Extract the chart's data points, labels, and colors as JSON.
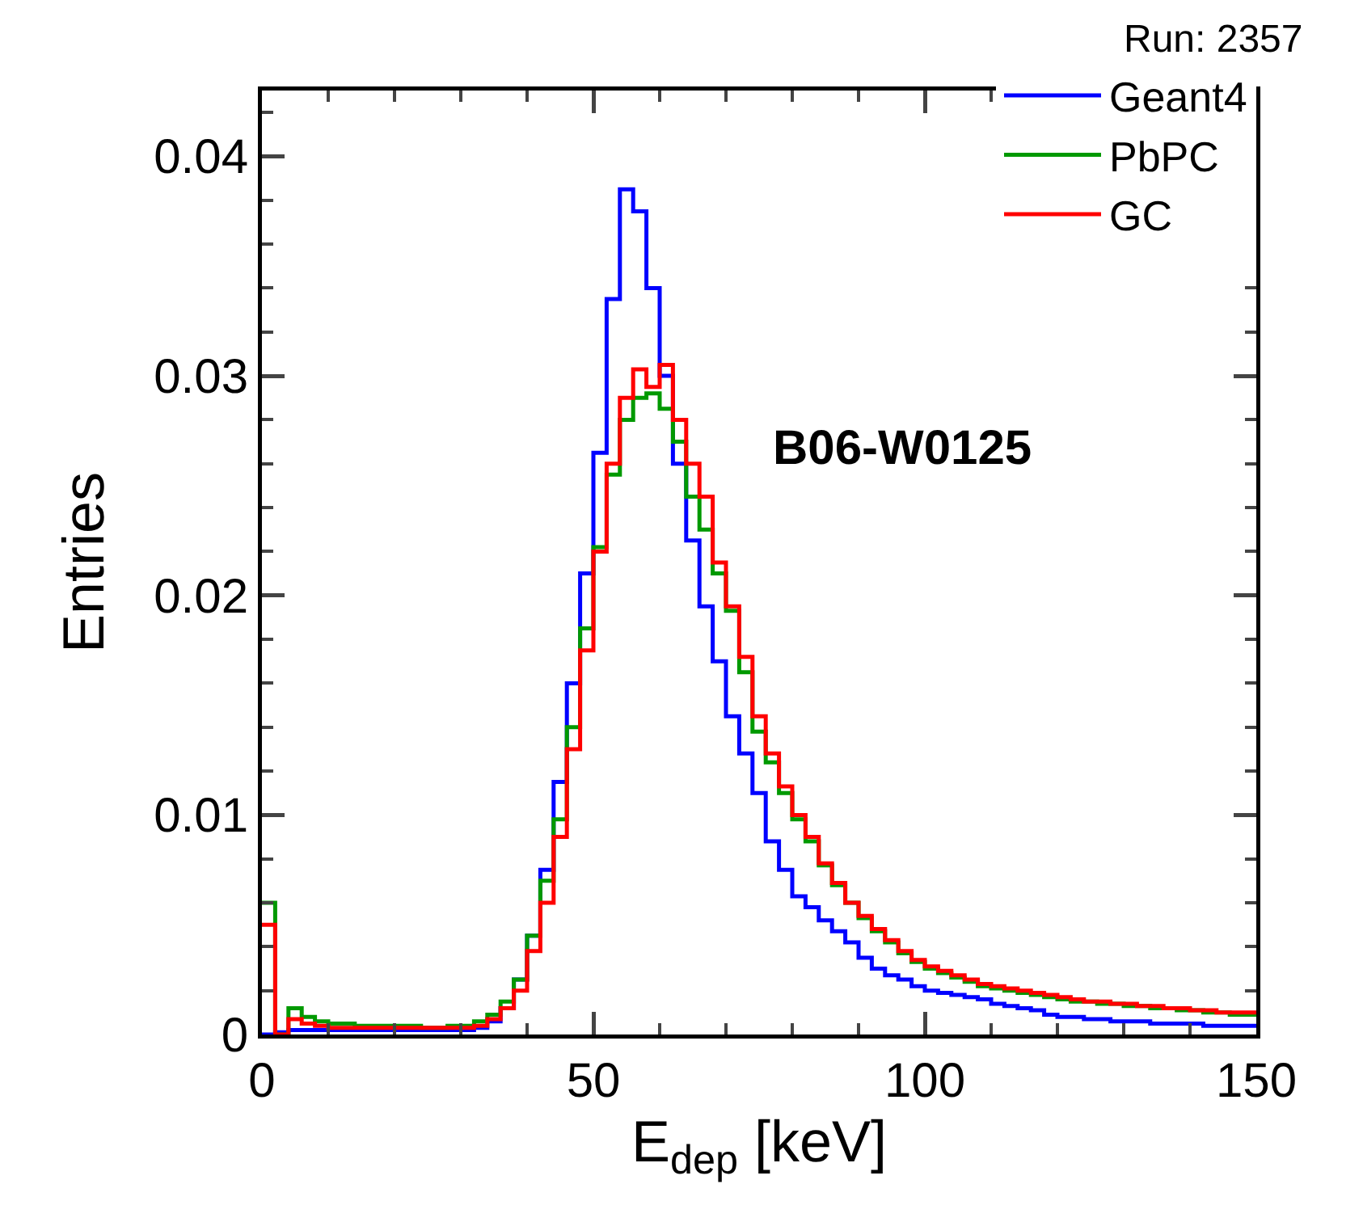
{
  "chart_data": {
    "type": "histogram",
    "title": "Run: 2357",
    "xlabel": "E$_{dep}$ [keV]",
    "ylabel": "Entries",
    "annotations": [
      "B06-W0125"
    ],
    "bins": [
      0,
      2,
      4,
      6,
      8,
      10,
      12,
      14,
      16,
      18,
      20,
      22,
      24,
      26,
      28,
      30,
      32,
      34,
      36,
      38,
      40,
      42,
      44,
      46,
      48,
      50,
      52,
      54,
      56,
      58,
      60,
      62,
      64,
      66,
      68,
      70,
      72,
      74,
      76,
      78,
      80,
      82,
      84,
      86,
      88,
      90,
      92,
      94,
      96,
      98,
      100,
      102,
      104,
      106,
      108,
      110,
      112,
      114,
      116,
      118,
      120,
      122,
      124,
      126,
      128,
      130,
      132,
      134,
      136,
      138,
      140,
      142,
      144,
      146,
      148,
      150
    ],
    "series": [
      {
        "name": "Geant4",
        "color": "#0000ff",
        "values": [
          0,
          0.0001,
          0.0002,
          0.0002,
          0.0002,
          0.0002,
          0.0002,
          0.0002,
          0.0002,
          0.0002,
          0.0002,
          0.0002,
          0.0002,
          0.0002,
          0.0002,
          0.0002,
          0.0003,
          0.0006,
          0.0012,
          0.0025,
          0.0045,
          0.0075,
          0.0115,
          0.016,
          0.021,
          0.0265,
          0.0335,
          0.0385,
          0.0375,
          0.034,
          0.03,
          0.026,
          0.0225,
          0.0195,
          0.017,
          0.0145,
          0.0128,
          0.011,
          0.0088,
          0.0075,
          0.0063,
          0.0058,
          0.0052,
          0.0047,
          0.0042,
          0.0035,
          0.003,
          0.0027,
          0.0025,
          0.0022,
          0.002,
          0.0019,
          0.0018,
          0.0017,
          0.0016,
          0.0014,
          0.0013,
          0.0012,
          0.0011,
          0.0009,
          0.0008,
          0.0008,
          0.0007,
          0.0007,
          0.0006,
          0.0006,
          0.0006,
          0.0005,
          0.0005,
          0.0005,
          0.0005,
          0.0004,
          0.0004,
          0.0004,
          0.0004
        ]
      },
      {
        "name": "PbPC",
        "color": "#009900",
        "values": [
          0.006,
          0,
          0.0012,
          0.0008,
          0.0006,
          0.0005,
          0.0005,
          0.0004,
          0.0004,
          0.0004,
          0.0004,
          0.0004,
          0.0003,
          0.0003,
          0.0004,
          0.0004,
          0.0006,
          0.0009,
          0.0015,
          0.0025,
          0.0045,
          0.007,
          0.0098,
          0.014,
          0.0185,
          0.0222,
          0.0255,
          0.028,
          0.029,
          0.0292,
          0.0285,
          0.027,
          0.0245,
          0.023,
          0.021,
          0.0193,
          0.0165,
          0.0138,
          0.0124,
          0.011,
          0.0098,
          0.0088,
          0.0077,
          0.0068,
          0.006,
          0.0053,
          0.0047,
          0.0042,
          0.0037,
          0.0033,
          0.003,
          0.0028,
          0.0026,
          0.0024,
          0.0022,
          0.0021,
          0.002,
          0.0019,
          0.0018,
          0.0017,
          0.0016,
          0.0015,
          0.0015,
          0.0014,
          0.0014,
          0.0013,
          0.0013,
          0.0012,
          0.0012,
          0.0011,
          0.0011,
          0.001,
          0.001,
          0.0009,
          0.0009
        ]
      },
      {
        "name": "GC",
        "color": "#ff0000",
        "values": [
          0.005,
          0,
          0.0007,
          0.0005,
          0.0004,
          0.0003,
          0.0003,
          0.0003,
          0.0003,
          0.0003,
          0.0003,
          0.0003,
          0.0003,
          0.0003,
          0.0003,
          0.0003,
          0.0004,
          0.0007,
          0.0012,
          0.002,
          0.0038,
          0.006,
          0.009,
          0.013,
          0.0175,
          0.022,
          0.026,
          0.029,
          0.0303,
          0.0295,
          0.0305,
          0.028,
          0.026,
          0.0245,
          0.0215,
          0.0195,
          0.0172,
          0.0145,
          0.0128,
          0.0113,
          0.01,
          0.009,
          0.0078,
          0.0069,
          0.006,
          0.0054,
          0.0048,
          0.0043,
          0.0038,
          0.0034,
          0.0031,
          0.0029,
          0.0027,
          0.0025,
          0.0023,
          0.0022,
          0.0021,
          0.002,
          0.0019,
          0.0018,
          0.0017,
          0.0016,
          0.0015,
          0.0015,
          0.0014,
          0.0014,
          0.0013,
          0.0013,
          0.0012,
          0.0012,
          0.0011,
          0.0011,
          0.001,
          0.001,
          0.001
        ]
      }
    ],
    "xlim": [
      0,
      150
    ],
    "xticks": [
      0,
      50,
      100,
      150
    ],
    "ylim": [
      0,
      0.043
    ],
    "yticks": [
      0,
      0.01,
      0.02,
      0.03,
      0.04
    ],
    "grid": false,
    "legend": "top right"
  }
}
